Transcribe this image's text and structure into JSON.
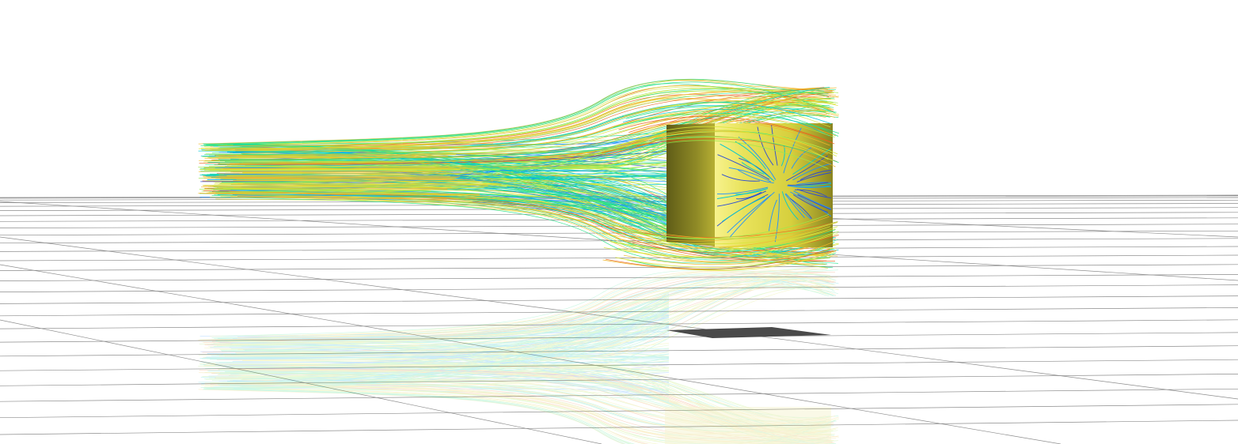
{
  "scene": {
    "background_color": "#ffffff",
    "grid_color": "#8c8c8c",
    "shadow_color": "#4a4a4a",
    "cube_colors": {
      "highlight": "#f6f08a",
      "base": "#d9d23f",
      "shade": "#8f8a22",
      "dark": "#5e5b16"
    },
    "streamline_colormap": [
      "#2a4bd7",
      "#1e90ff",
      "#00c8d2",
      "#25e08a",
      "#9ee84a",
      "#d8e43a",
      "#f0b82a",
      "#e8641e",
      "#d21a1a"
    ]
  }
}
